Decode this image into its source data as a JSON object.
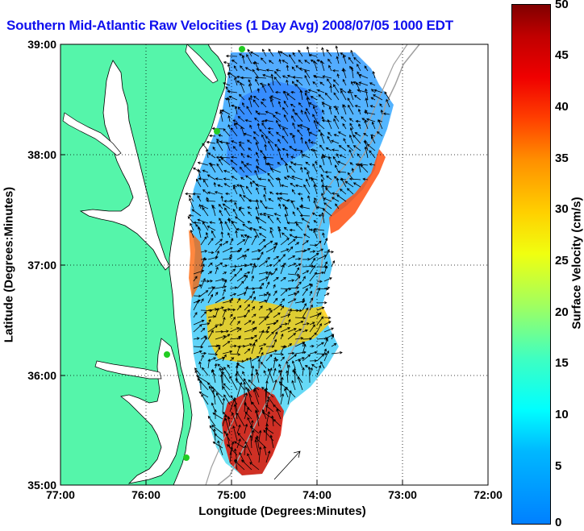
{
  "title": "Southern Mid-Atlantic Raw Velocities (1 Day Avg) 2008/07/05 1000 EDT",
  "axes": {
    "xlabel": "Longitude (Degrees:Minutes)",
    "ylabel": "Latitude (Degrees:Minutes)",
    "x_ticks": [
      "77:00",
      "76:00",
      "75:00",
      "74:00",
      "73:00",
      "72:00"
    ],
    "y_ticks": [
      "39:00",
      "38:00",
      "37:00",
      "36:00",
      "35:00"
    ]
  },
  "colorbar": {
    "label": "Surface Velocity (cm/s)",
    "ticks": [
      "50",
      "45",
      "40",
      "35",
      "30",
      "25",
      "20",
      "15",
      "10",
      "5",
      "0"
    ],
    "min": 0,
    "max": 50
  },
  "colors": {
    "title": "#1010ee",
    "land": "#55f5aa",
    "coastline": "#000000",
    "bathymetry": "#a0a0a0",
    "station_marker": "#22cc22"
  },
  "map": {
    "lon_range": [
      -77,
      -72
    ],
    "lat_range": [
      35,
      39
    ],
    "grid": true,
    "grid_style": "dotted",
    "stations": [
      "station",
      "station",
      "station",
      "station"
    ]
  }
}
